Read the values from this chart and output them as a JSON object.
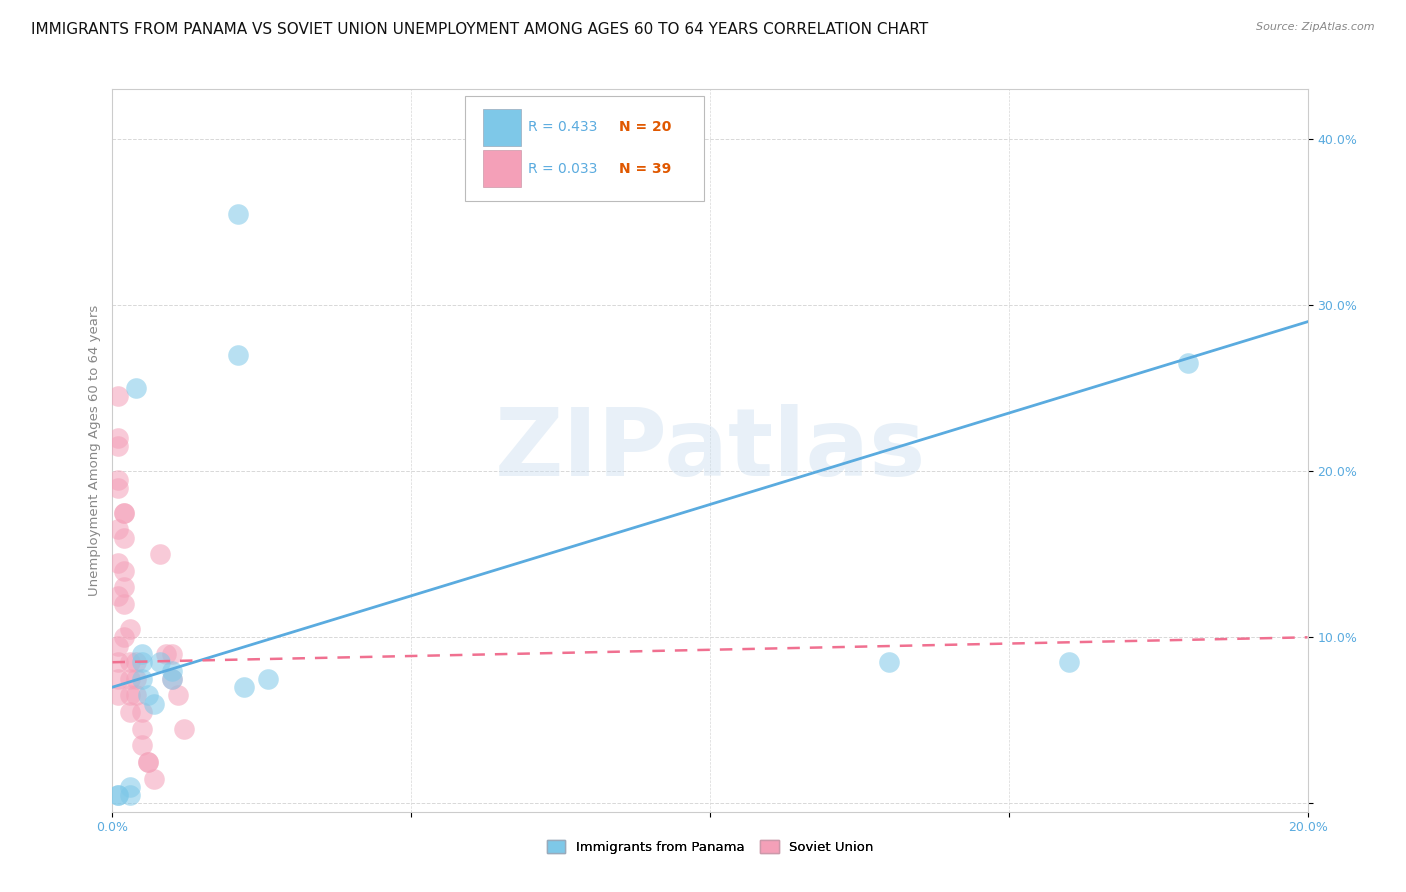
{
  "title": "IMMIGRANTS FROM PANAMA VS SOVIET UNION UNEMPLOYMENT AMONG AGES 60 TO 64 YEARS CORRELATION CHART",
  "source": "Source: ZipAtlas.com",
  "xlim": [
    0.0,
    0.2
  ],
  "ylim": [
    -0.005,
    0.43
  ],
  "watermark": "ZIPatlas",
  "legend_panama": "Immigrants from Panama",
  "legend_soviet": "Soviet Union",
  "panama_R": "R = 0.433",
  "panama_N": "N = 20",
  "soviet_R": "R = 0.033",
  "soviet_N": "N = 39",
  "panama_color": "#7ec8e8",
  "soviet_color": "#f4a0b8",
  "panama_line_color": "#5aabdf",
  "soviet_line_color": "#f07090",
  "panama_line_x": [
    0.0,
    0.2
  ],
  "panama_line_y": [
    0.07,
    0.29
  ],
  "soviet_line_x": [
    0.0,
    0.2
  ],
  "soviet_line_y": [
    0.085,
    0.1
  ],
  "panama_points_x": [
    0.021,
    0.021,
    0.004,
    0.005,
    0.005,
    0.005,
    0.006,
    0.007,
    0.008,
    0.01,
    0.01,
    0.022,
    0.026,
    0.001,
    0.001,
    0.16,
    0.18,
    0.13,
    0.003,
    0.003
  ],
  "panama_points_y": [
    0.355,
    0.27,
    0.25,
    0.09,
    0.085,
    0.075,
    0.065,
    0.06,
    0.085,
    0.08,
    0.075,
    0.07,
    0.075,
    0.005,
    0.005,
    0.085,
    0.265,
    0.085,
    0.005,
    0.01
  ],
  "soviet_points_x": [
    0.001,
    0.001,
    0.001,
    0.001,
    0.001,
    0.001,
    0.001,
    0.001,
    0.001,
    0.001,
    0.001,
    0.002,
    0.002,
    0.002,
    0.002,
    0.002,
    0.003,
    0.003,
    0.003,
    0.003,
    0.003,
    0.004,
    0.004,
    0.004,
    0.005,
    0.005,
    0.005,
    0.005,
    0.006,
    0.006,
    0.007,
    0.007,
    0.008,
    0.008,
    0.009,
    0.009,
    0.01,
    0.01,
    0.011
  ],
  "soviet_points_x2": [
    0.001,
    0.001,
    0.001,
    0.001,
    0.001,
    0.001,
    0.001,
    0.001,
    0.001,
    0.001,
    0.001,
    0.001,
    0.002,
    0.002,
    0.002,
    0.002,
    0.002,
    0.003,
    0.003,
    0.003,
    0.003,
    0.004,
    0.004,
    0.004,
    0.005,
    0.005,
    0.005,
    0.006,
    0.006,
    0.007,
    0.008,
    0.009,
    0.01,
    0.01,
    0.011,
    0.012,
    0.002,
    0.002,
    0.003
  ],
  "soviet_points_y": [
    0.245,
    0.215,
    0.195,
    0.19,
    0.165,
    0.145,
    0.125,
    0.095,
    0.085,
    0.075,
    0.065,
    0.22,
    0.175,
    0.16,
    0.14,
    0.12,
    0.1,
    0.085,
    0.075,
    0.065,
    0.055,
    0.085,
    0.075,
    0.065,
    0.055,
    0.045,
    0.035,
    0.025,
    0.025,
    0.015,
    0.15,
    0.09,
    0.09,
    0.075,
    0.065,
    0.045,
    0.175,
    0.13,
    0.105
  ],
  "title_fontsize": 11,
  "axis_label_fontsize": 9.5,
  "tick_fontsize": 9
}
